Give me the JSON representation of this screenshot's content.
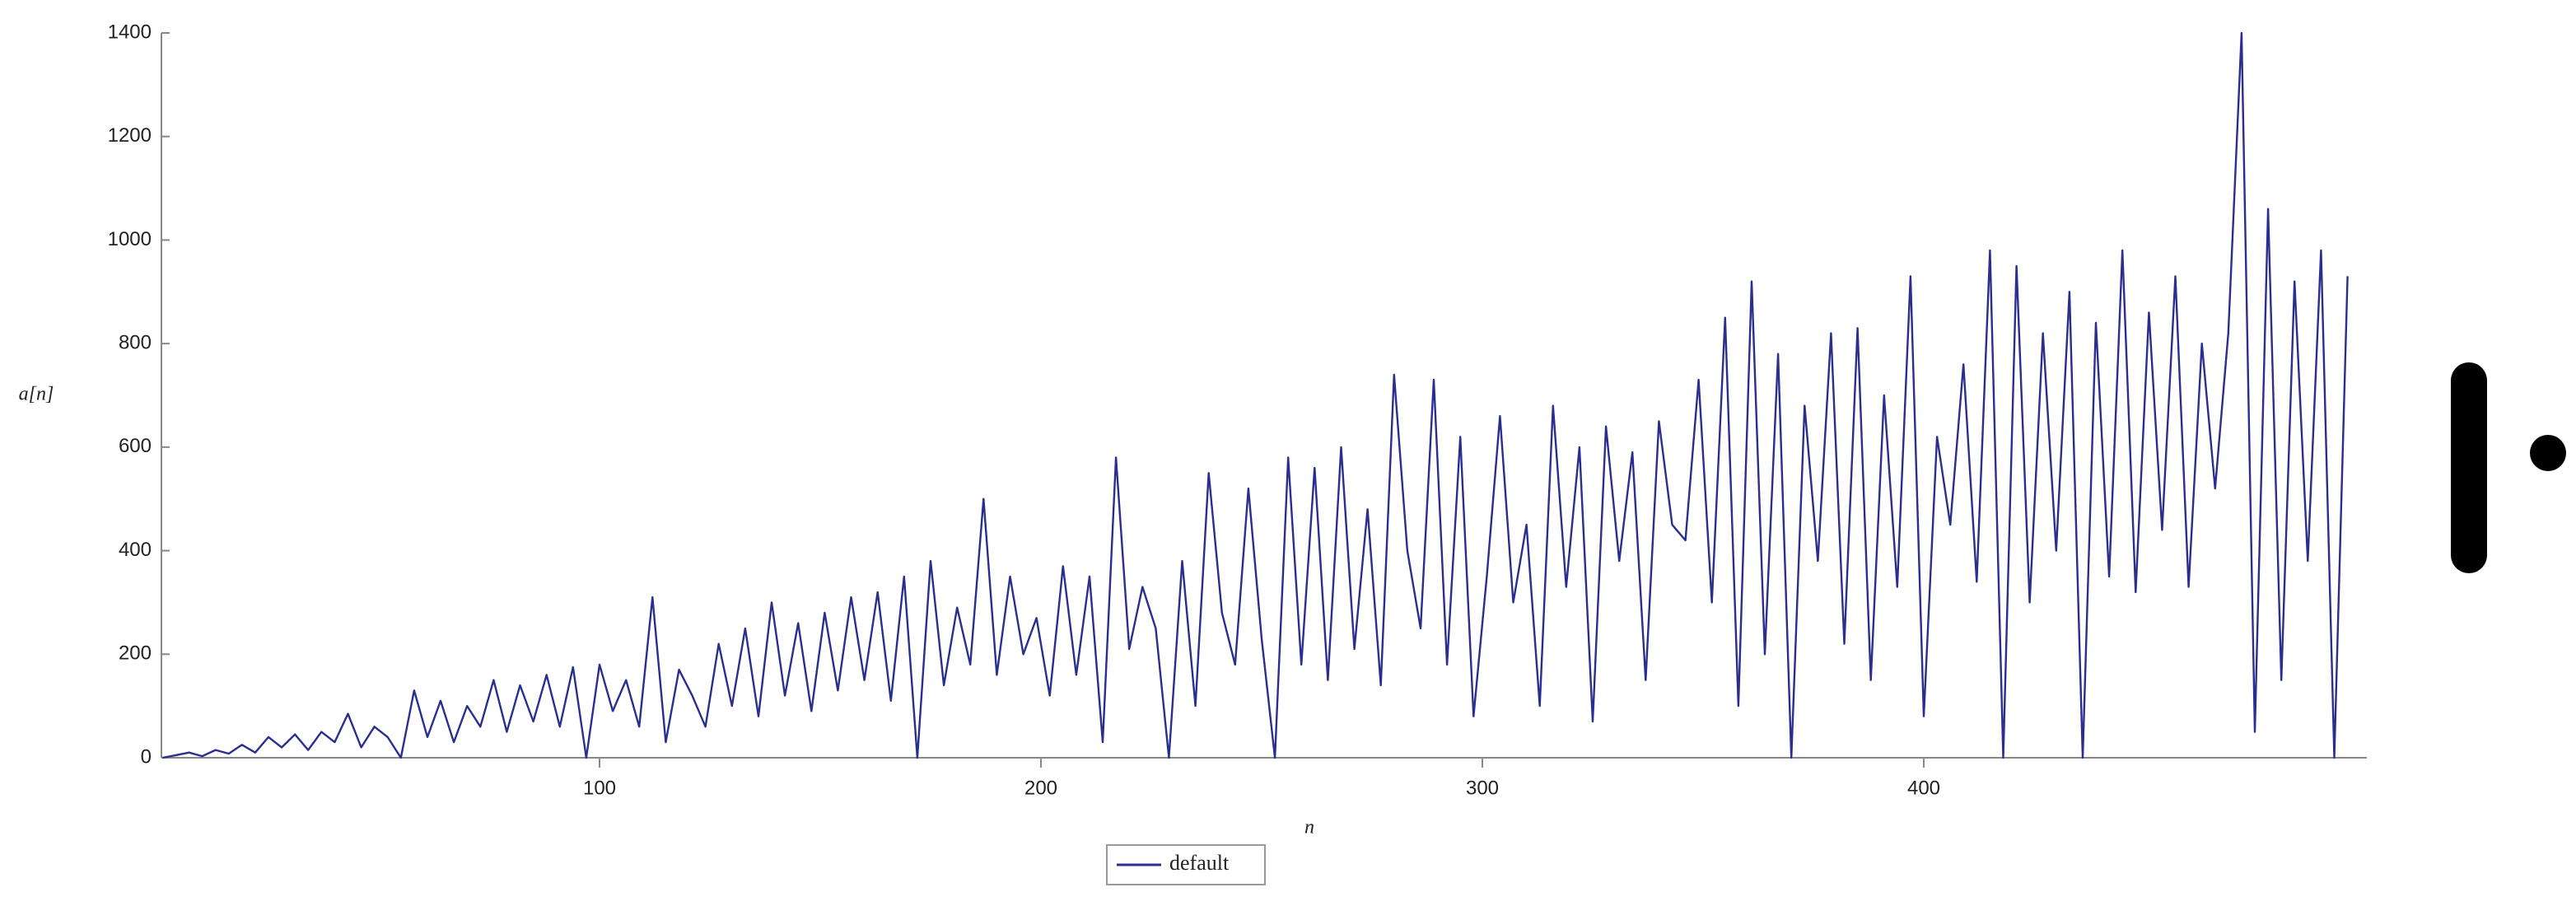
{
  "chart_data": {
    "type": "line",
    "xlabel": "n",
    "ylabel": "a[n]",
    "xlim": [
      0,
      500
    ],
    "ylim": [
      0,
      1400
    ],
    "xticks": [
      100,
      200,
      300,
      400
    ],
    "yticks": [
      0,
      200,
      400,
      600,
      800,
      1000,
      1200,
      1400
    ],
    "legend": "bottom",
    "x": [
      1,
      4,
      7,
      10,
      13,
      16,
      19,
      22,
      25,
      28,
      31,
      34,
      37,
      40,
      43,
      46,
      49,
      52,
      55,
      58,
      61,
      64,
      67,
      70,
      73,
      76,
      79,
      82,
      85,
      88,
      91,
      94,
      97,
      100,
      103,
      106,
      109,
      112,
      115,
      118,
      121,
      124,
      127,
      130,
      133,
      136,
      139,
      142,
      145,
      148,
      151,
      154,
      157,
      160,
      163,
      166,
      169,
      172,
      175,
      178,
      181,
      184,
      187,
      190,
      193,
      196,
      199,
      202,
      205,
      208,
      211,
      214,
      217,
      220,
      223,
      226,
      229,
      232,
      235,
      238,
      241,
      244,
      247,
      250,
      253,
      256,
      259,
      262,
      265,
      268,
      271,
      274,
      277,
      280,
      283,
      286,
      289,
      292,
      295,
      298,
      301,
      304,
      307,
      310,
      313,
      316,
      319,
      322,
      325,
      328,
      331,
      334,
      337,
      340,
      343,
      346,
      349,
      352,
      355,
      358,
      361,
      364,
      367,
      370,
      373,
      376,
      379,
      382,
      385,
      388,
      391,
      394,
      397,
      400,
      403,
      406,
      409,
      412,
      415,
      418,
      421,
      424,
      427,
      430,
      433,
      436,
      439,
      442,
      445,
      448,
      451,
      454,
      457,
      460,
      463,
      466,
      469,
      472,
      475,
      478,
      481,
      484,
      487,
      490,
      493,
      496
    ],
    "series": [
      {
        "name": "default",
        "color": "#2a2f8f",
        "values": [
          0,
          5,
          10,
          3,
          15,
          8,
          25,
          10,
          40,
          20,
          45,
          15,
          50,
          30,
          85,
          20,
          60,
          40,
          0,
          130,
          40,
          110,
          30,
          100,
          60,
          150,
          50,
          140,
          70,
          160,
          60,
          175,
          0,
          180,
          90,
          150,
          60,
          310,
          30,
          170,
          120,
          60,
          220,
          100,
          250,
          80,
          300,
          120,
          260,
          90,
          280,
          130,
          310,
          150,
          320,
          110,
          350,
          0,
          380,
          140,
          290,
          180,
          500,
          160,
          350,
          200,
          270,
          120,
          370,
          160,
          350,
          30,
          580,
          210,
          330,
          250,
          0,
          380,
          100,
          550,
          280,
          180,
          520,
          230,
          0,
          580,
          180,
          560,
          150,
          600,
          210,
          480,
          140,
          740,
          400,
          250,
          730,
          180,
          620,
          80,
          350,
          660,
          300,
          450,
          100,
          680,
          330,
          600,
          70,
          640,
          380,
          590,
          150,
          650,
          450,
          420,
          730,
          300,
          850,
          100,
          920,
          200,
          780,
          0,
          680,
          380,
          820,
          220,
          830,
          150,
          700,
          330,
          930,
          80,
          620,
          450,
          760,
          340,
          980,
          0,
          950,
          300,
          820,
          400,
          900,
          0,
          840,
          350,
          980,
          320,
          860,
          440,
          930,
          330,
          800,
          520,
          820,
          1400,
          50,
          1060,
          150,
          920,
          380,
          980,
          0,
          930
        ]
      }
    ]
  }
}
